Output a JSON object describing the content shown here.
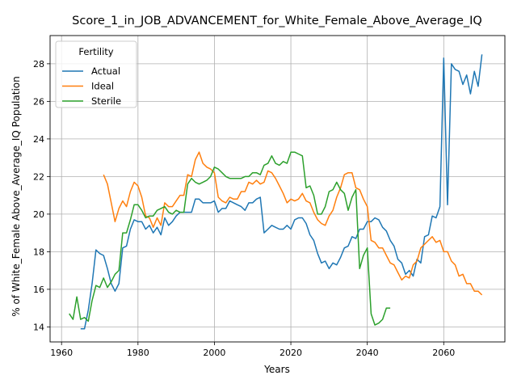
{
  "chart_data": {
    "type": "line",
    "title": "Score_1_in_JOB_ADVANCEMENT_for_White_Female_Above_Average_IQ",
    "xlabel": "Years",
    "ylabel": "% of White_Female Above_Average_IQ Population",
    "xlim": [
      1957,
      2076
    ],
    "ylim": [
      13.2,
      29.5
    ],
    "xticks": [
      1960,
      1980,
      2000,
      2020,
      2040,
      2060
    ],
    "yticks": [
      14,
      16,
      18,
      20,
      22,
      24,
      26,
      28
    ],
    "grid": true,
    "legend": {
      "title": "Fertility",
      "placement": "top-left"
    },
    "series": [
      {
        "name": "Actual",
        "color": "#1f77b4",
        "x": [
          1965,
          1966,
          1967,
          1968,
          1969,
          1970,
          1971,
          1972,
          1973,
          1974,
          1975,
          1976,
          1977,
          1978,
          1979,
          1980,
          1981,
          1982,
          1983,
          1984,
          1985,
          1986,
          1987,
          1988,
          1989,
          1990,
          1991,
          1992,
          1993,
          1994,
          1995,
          1996,
          1997,
          1998,
          1999,
          2000,
          2001,
          2002,
          2003,
          2004,
          2005,
          2006,
          2007,
          2008,
          2009,
          2010,
          2011,
          2012,
          2013,
          2014,
          2015,
          2016,
          2017,
          2018,
          2019,
          2020,
          2021,
          2022,
          2023,
          2024,
          2025,
          2026,
          2027,
          2028,
          2029,
          2030,
          2031,
          2032,
          2033,
          2034,
          2035,
          2036,
          2037,
          2038,
          2039,
          2040,
          2041,
          2042,
          2043,
          2044,
          2045,
          2046,
          2047,
          2048,
          2049,
          2050,
          2051,
          2052,
          2053,
          2054,
          2055,
          2056,
          2057,
          2058,
          2059,
          2060,
          2061,
          2062,
          2063,
          2064,
          2065,
          2066,
          2067,
          2068,
          2069,
          2070
        ],
        "values": [
          13.9,
          13.9,
          14.9,
          16.3,
          18.1,
          17.9,
          17.8,
          17.1,
          16.3,
          15.9,
          16.3,
          18.2,
          18.3,
          19.2,
          19.7,
          19.6,
          19.6,
          19.2,
          19.4,
          19.0,
          19.3,
          18.9,
          19.8,
          19.4,
          19.6,
          19.9,
          20.1,
          20.1,
          20.1,
          20.1,
          20.8,
          20.8,
          20.6,
          20.6,
          20.6,
          20.7,
          20.1,
          20.3,
          20.3,
          20.7,
          20.6,
          20.5,
          20.4,
          20.2,
          20.6,
          20.6,
          20.8,
          20.9,
          19.0,
          19.2,
          19.4,
          19.3,
          19.2,
          19.2,
          19.4,
          19.2,
          19.7,
          19.8,
          19.8,
          19.5,
          18.9,
          18.6,
          17.9,
          17.4,
          17.5,
          17.1,
          17.4,
          17.3,
          17.7,
          18.2,
          18.3,
          18.8,
          18.7,
          19.2,
          19.2,
          19.6,
          19.6,
          19.8,
          19.7,
          19.3,
          19.1,
          18.6,
          18.3,
          17.6,
          17.4,
          16.8,
          17.0,
          16.7,
          17.6,
          17.4,
          18.8,
          18.9,
          19.9,
          19.8,
          20.4,
          28.3,
          20.5,
          28.0,
          27.7,
          27.6,
          26.9,
          27.4,
          26.4,
          27.6,
          26.8,
          28.5
        ]
      },
      {
        "name": "Ideal",
        "color": "#ff7f0e",
        "x": [
          1971,
          1972,
          1973,
          1974,
          1975,
          1976,
          1977,
          1978,
          1979,
          1980,
          1981,
          1982,
          1983,
          1984,
          1985,
          1986,
          1987,
          1988,
          1989,
          1990,
          1991,
          1992,
          1993,
          1994,
          1995,
          1996,
          1997,
          1998,
          1999,
          2000,
          2001,
          2002,
          2003,
          2004,
          2005,
          2006,
          2007,
          2008,
          2009,
          2010,
          2011,
          2012,
          2013,
          2014,
          2015,
          2016,
          2017,
          2018,
          2019,
          2020,
          2021,
          2022,
          2023,
          2024,
          2025,
          2026,
          2027,
          2028,
          2029,
          2030,
          2031,
          2032,
          2033,
          2034,
          2035,
          2036,
          2037,
          2038,
          2039,
          2040,
          2041,
          2042,
          2043,
          2044,
          2045,
          2046,
          2047,
          2048,
          2049,
          2050,
          2051,
          2052,
          2053,
          2054,
          2055,
          2056,
          2057,
          2058,
          2059,
          2060,
          2061,
          2062,
          2063,
          2064,
          2065,
          2066,
          2067,
          2068,
          2069,
          2070
        ],
        "values": [
          22.1,
          21.6,
          20.6,
          19.6,
          20.3,
          20.7,
          20.4,
          21.2,
          21.7,
          21.5,
          20.9,
          19.9,
          19.8,
          19.3,
          19.8,
          19.4,
          20.6,
          20.4,
          20.4,
          20.7,
          21.0,
          21.0,
          22.1,
          22.0,
          22.9,
          23.3,
          22.7,
          22.5,
          22.4,
          22.2,
          20.9,
          20.7,
          20.6,
          20.9,
          20.8,
          20.8,
          21.2,
          21.2,
          21.7,
          21.6,
          21.8,
          21.6,
          21.7,
          22.3,
          22.2,
          21.9,
          21.5,
          21.1,
          20.6,
          20.8,
          20.7,
          20.8,
          21.1,
          20.7,
          20.6,
          20.1,
          19.7,
          19.5,
          19.4,
          19.9,
          20.2,
          20.9,
          21.4,
          22.1,
          22.2,
          22.2,
          21.4,
          21.3,
          20.8,
          20.4,
          18.6,
          18.5,
          18.2,
          18.2,
          17.8,
          17.4,
          17.3,
          16.9,
          16.5,
          16.7,
          16.6,
          17.3,
          17.5,
          18.2,
          18.4,
          18.6,
          18.8,
          18.5,
          18.6,
          18.0,
          18.0,
          17.5,
          17.3,
          16.7,
          16.8,
          16.3,
          16.3,
          15.9,
          15.9,
          15.7
        ]
      },
      {
        "name": "Sterile",
        "color": "#2ca02c",
        "x": [
          1962,
          1963,
          1964,
          1965,
          1966,
          1967,
          1968,
          1969,
          1970,
          1971,
          1972,
          1973,
          1974,
          1975,
          1976,
          1977,
          1978,
          1979,
          1980,
          1981,
          1982,
          1983,
          1984,
          1985,
          1986,
          1987,
          1988,
          1989,
          1990,
          1991,
          1992,
          1993,
          1994,
          1995,
          1996,
          1997,
          1998,
          1999,
          2000,
          2001,
          2002,
          2003,
          2004,
          2005,
          2006,
          2007,
          2008,
          2009,
          2010,
          2011,
          2012,
          2013,
          2014,
          2015,
          2016,
          2017,
          2018,
          2019,
          2020,
          2021,
          2022,
          2023,
          2024,
          2025,
          2026,
          2027,
          2028,
          2029,
          2030,
          2031,
          2032,
          2033,
          2034,
          2035,
          2036,
          2037,
          2038,
          2039,
          2040,
          2041,
          2042,
          2043,
          2044,
          2045,
          2046
        ],
        "values": [
          14.7,
          14.4,
          15.6,
          14.4,
          14.5,
          14.3,
          15.4,
          16.2,
          16.1,
          16.6,
          16.1,
          16.4,
          16.8,
          17.0,
          19.0,
          19.0,
          19.7,
          20.5,
          20.5,
          20.2,
          19.8,
          19.9,
          19.9,
          20.2,
          20.3,
          20.4,
          20.1,
          20.0,
          20.2,
          20.1,
          20.1,
          21.6,
          21.9,
          21.7,
          21.6,
          21.7,
          21.8,
          22.0,
          22.5,
          22.4,
          22.2,
          22.0,
          21.9,
          21.9,
          21.9,
          21.9,
          22.0,
          22.0,
          22.2,
          22.2,
          22.1,
          22.6,
          22.7,
          23.1,
          22.7,
          22.6,
          22.8,
          22.7,
          23.3,
          23.3,
          23.2,
          23.1,
          21.4,
          21.5,
          21.0,
          20.0,
          20.0,
          20.4,
          21.2,
          21.3,
          21.7,
          21.3,
          21.1,
          20.2,
          20.9,
          21.3,
          17.1,
          17.8,
          18.2,
          14.7,
          14.1,
          14.2,
          14.4,
          15.0,
          15.0
        ]
      }
    ]
  }
}
